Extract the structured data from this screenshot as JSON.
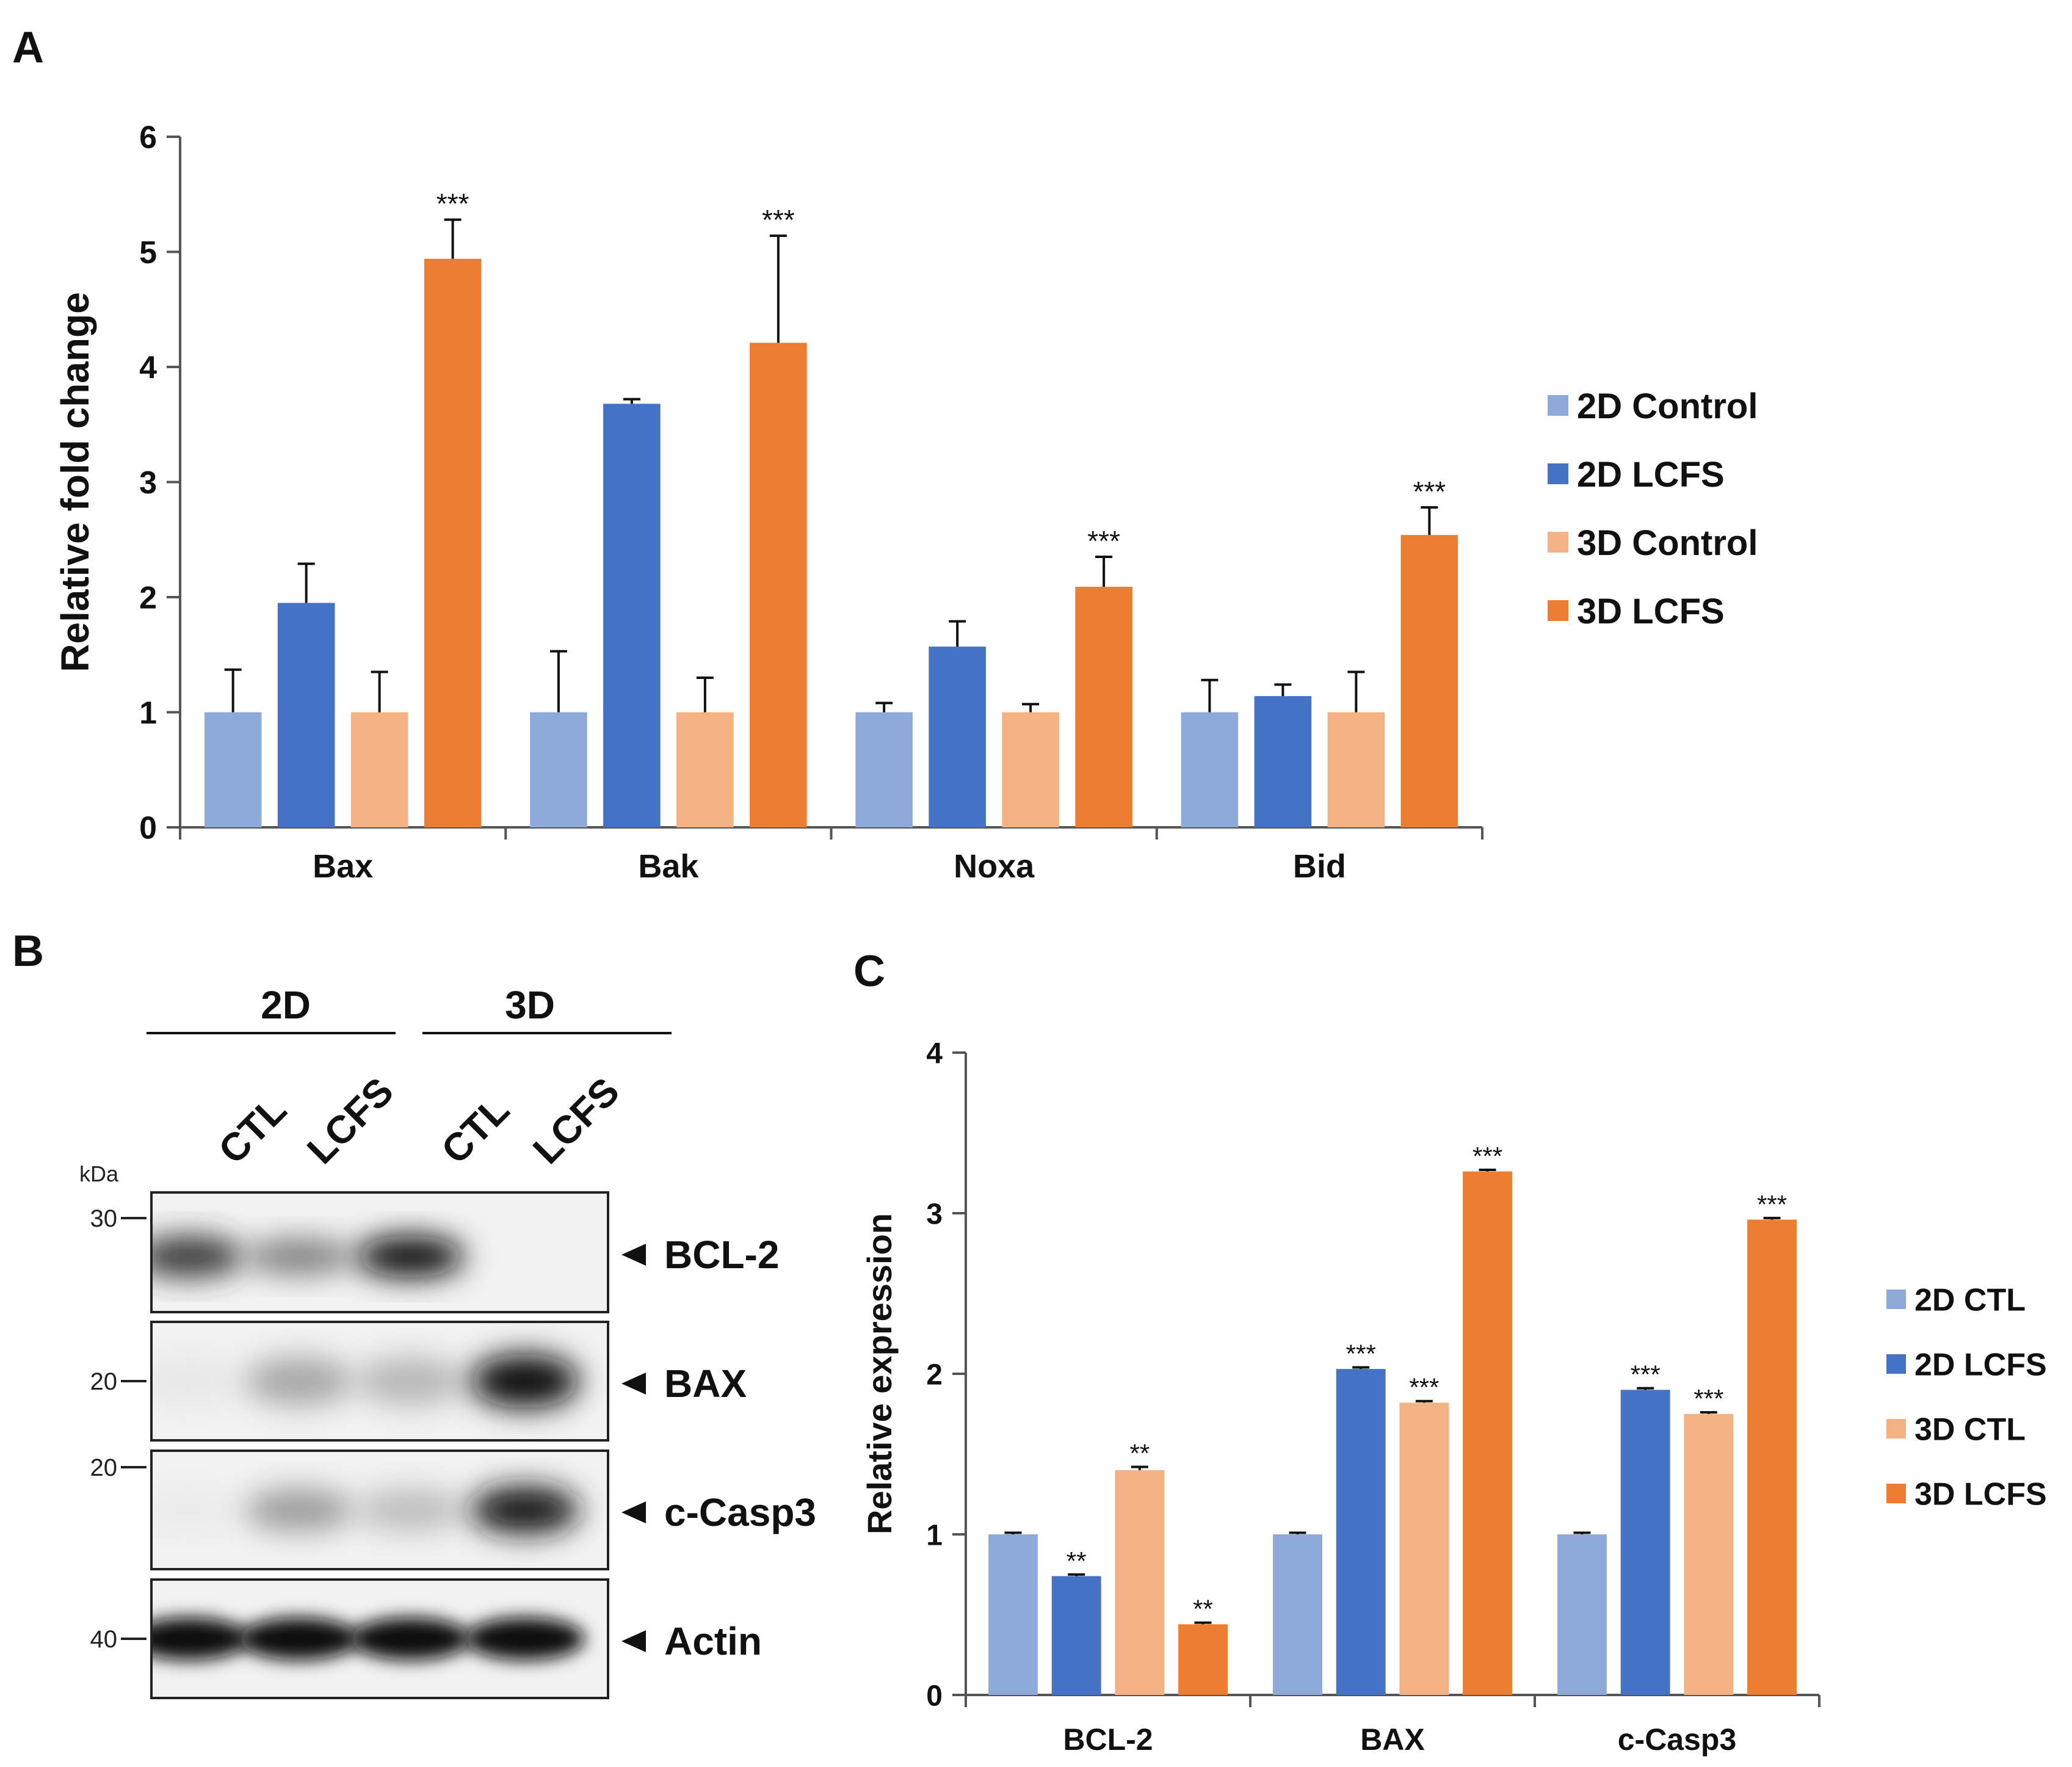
{
  "panel_labels": {
    "a": "A",
    "b": "B",
    "c": "C"
  },
  "colors": {
    "ctl2d": "#8EAADB",
    "lcfs2d": "#4472C4",
    "ctl3d": "#F4B183",
    "lcfs3d": "#ED7D31",
    "axis": "#555555"
  },
  "chart_data": [
    {
      "id": "panel-a",
      "type": "bar",
      "title": "",
      "xlabel": "",
      "ylabel": "Relative fold change",
      "ylim": [
        0,
        6
      ],
      "yticks": [
        0,
        1,
        2,
        3,
        4,
        5,
        6
      ],
      "legend": "right",
      "categories": [
        "Bax",
        "Bak",
        "Noxa",
        "Bid"
      ],
      "series": [
        {
          "name": "2D Control",
          "color_key": "ctl2d",
          "values": [
            1.0,
            1.0,
            1.0,
            1.0
          ],
          "errors": [
            0.37,
            0.53,
            0.08,
            0.28
          ],
          "sig": [
            "",
            "",
            "",
            ""
          ]
        },
        {
          "name": "2D LCFS",
          "color_key": "lcfs2d",
          "values": [
            1.95,
            3.68,
            1.57,
            1.14
          ],
          "errors": [
            0.34,
            0.04,
            0.22,
            0.1
          ],
          "sig": [
            "",
            "",
            "",
            ""
          ]
        },
        {
          "name": "3D Control",
          "color_key": "ctl3d",
          "values": [
            1.0,
            1.0,
            1.0,
            1.0
          ],
          "errors": [
            0.35,
            0.3,
            0.07,
            0.35
          ],
          "sig": [
            "",
            "",
            "",
            ""
          ]
        },
        {
          "name": "3D LCFS",
          "color_key": "lcfs3d",
          "values": [
            4.94,
            4.21,
            2.09,
            2.54
          ],
          "errors": [
            0.34,
            0.93,
            0.26,
            0.24
          ],
          "sig": [
            "***",
            "***",
            "***",
            "***"
          ]
        }
      ]
    },
    {
      "id": "panel-c",
      "type": "bar",
      "title": "",
      "xlabel": "",
      "ylabel": "Relative expression",
      "ylim": [
        0,
        4
      ],
      "yticks": [
        0,
        1,
        2,
        3,
        4
      ],
      "legend": "right",
      "categories": [
        "BCL-2",
        "BAX",
        "c-Casp3"
      ],
      "series": [
        {
          "name": "2D CTL",
          "color_key": "ctl2d",
          "values": [
            1.0,
            1.0,
            1.0
          ],
          "errors": [
            0.01,
            0.01,
            0.01
          ],
          "sig": [
            "",
            "",
            ""
          ]
        },
        {
          "name": "2D LCFS",
          "color_key": "lcfs2d",
          "values": [
            0.74,
            2.03,
            1.9
          ],
          "errors": [
            0.01,
            0.01,
            0.01
          ],
          "sig": [
            "**",
            "***",
            "***"
          ]
        },
        {
          "name": "3D CTL",
          "color_key": "ctl3d",
          "values": [
            1.4,
            1.82,
            1.75
          ],
          "errors": [
            0.02,
            0.01,
            0.01
          ],
          "sig": [
            "**",
            "***",
            "***"
          ]
        },
        {
          "name": "3D LCFS",
          "color_key": "lcfs3d",
          "values": [
            0.44,
            3.26,
            2.96
          ],
          "errors": [
            0.01,
            0.01,
            0.01
          ],
          "sig": [
            "**",
            "***",
            "***"
          ]
        }
      ]
    }
  ],
  "blot": {
    "groups": [
      "2D",
      "3D"
    ],
    "lanes": [
      "CTL",
      "LCFS",
      "CTL",
      "LCFS"
    ],
    "kda_label": "kDa",
    "rows": [
      {
        "protein": "BCL-2",
        "marker": "30",
        "bands": [
          0.82,
          0.6,
          1.0,
          0.0
        ]
      },
      {
        "protein": "BAX",
        "marker": "20",
        "bands": [
          0.08,
          0.45,
          0.38,
          1.0
        ]
      },
      {
        "protein": "c-Casp3",
        "marker": "20",
        "bands": [
          0.05,
          0.5,
          0.35,
          0.95
        ]
      },
      {
        "protein": "Actin",
        "marker": "40",
        "bands": [
          1.0,
          1.0,
          1.0,
          1.0
        ]
      }
    ]
  }
}
